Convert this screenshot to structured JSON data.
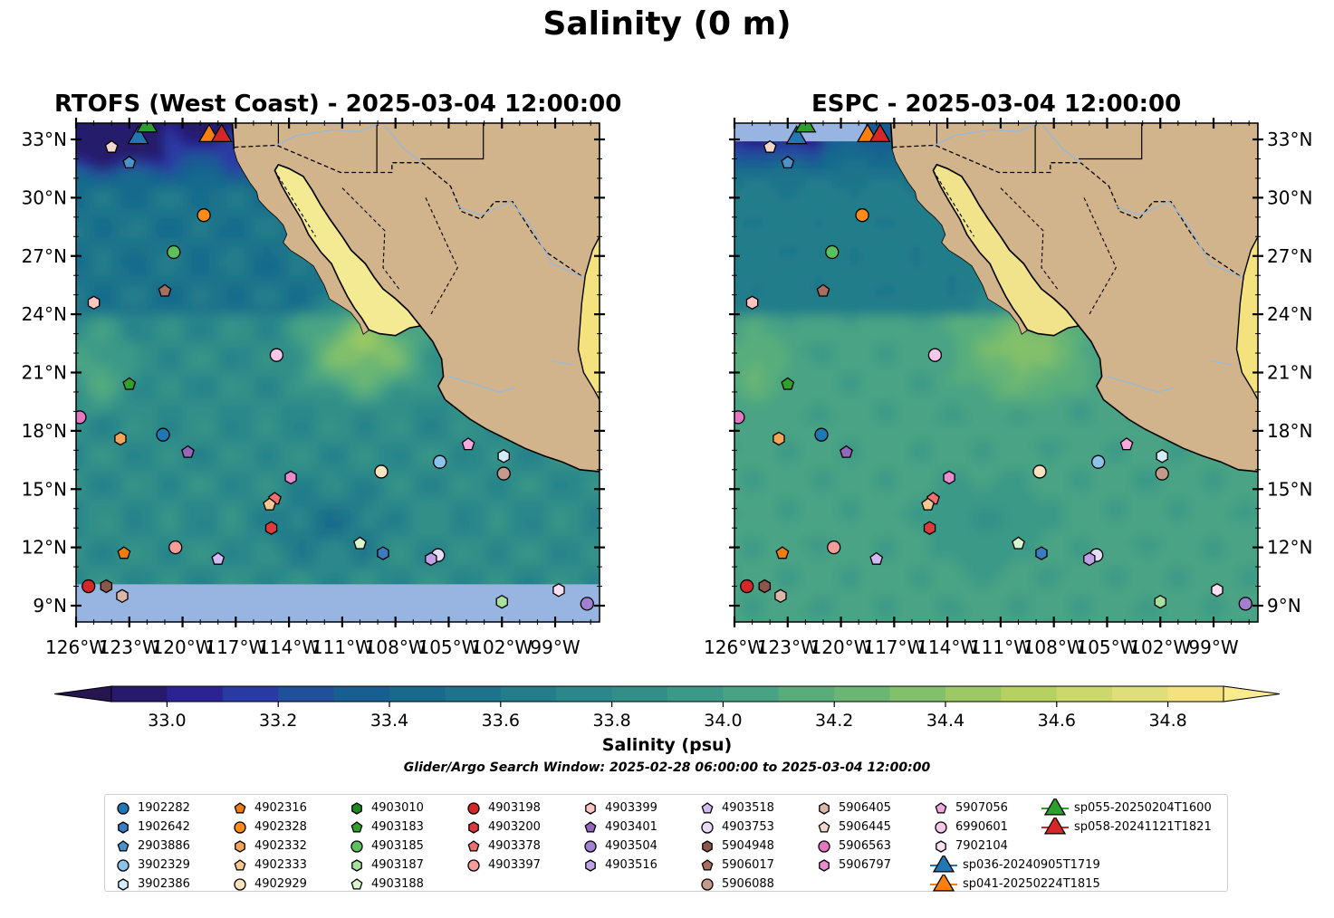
{
  "title": "Salinity (0 m)",
  "panels": [
    {
      "title": "RTOFS (West Coast) - 2025-03-04 12:00:00",
      "kind": "rtofs"
    },
    {
      "title": "ESPC - 2025-03-04 12:00:00",
      "kind": "espc"
    }
  ],
  "map_extent": {
    "lon": [
      -126,
      -96.5
    ],
    "lat": [
      8,
      34
    ]
  },
  "lat_ticks": [
    "33°N",
    "30°N",
    "27°N",
    "24°N",
    "21°N",
    "18°N",
    "15°N",
    "12°N",
    "9°N"
  ],
  "lon_ticks": [
    "126°W",
    "123°W",
    "120°W",
    "117°W",
    "114°W",
    "111°W",
    "108°W",
    "105°W",
    "102°W",
    "99°W"
  ],
  "colorbar": {
    "label": "Salinity (psu)",
    "range": [
      32.9,
      34.9
    ],
    "ticks": [
      "33.0",
      "33.2",
      "33.4",
      "33.6",
      "33.8",
      "34.0",
      "34.2",
      "34.4",
      "34.6",
      "34.8"
    ],
    "colors": [
      "#271a6c",
      "#2b2394",
      "#2a3aa5",
      "#20509b",
      "#175f93",
      "#176a8c",
      "#1c738b",
      "#237d8a",
      "#2a888a",
      "#318f88",
      "#3a9987",
      "#48a384",
      "#58ad7b",
      "#6bb674",
      "#82c06b",
      "#9cc963",
      "#b6d15f",
      "#cdd86a",
      "#dfdf7a",
      "#f3e27e"
    ],
    "under_color": "#26154f",
    "over_color": "#fbeb8f"
  },
  "colors": {
    "land": "#d2b48c",
    "masked": "#98b4e0",
    "river": "#9bb8d3"
  },
  "search_window": "Glider/Argo Search Window: 2025-02-28 06:00:00 to 2025-03-04 12:00:00",
  "legend": [
    {
      "label": "1902282",
      "marker": "circle",
      "color": "#1f77b4"
    },
    {
      "label": "1902642",
      "marker": "hexagon",
      "color": "#3a7cbf"
    },
    {
      "label": "2903886",
      "marker": "pentagon",
      "color": "#4c92c8"
    },
    {
      "label": "3902329",
      "marker": "circle",
      "color": "#8cc3ea"
    },
    {
      "label": "3902386",
      "marker": "hexagon",
      "color": "#d3ecfb"
    },
    {
      "label": "4902316",
      "marker": "pentagon",
      "color": "#ee7d0f"
    },
    {
      "label": "4902328",
      "marker": "circle",
      "color": "#ff8c1a"
    },
    {
      "label": "4902332",
      "marker": "hexagon",
      "color": "#f5a55a"
    },
    {
      "label": "4902333",
      "marker": "pentagon",
      "color": "#f9c892"
    },
    {
      "label": "4902929",
      "marker": "circle",
      "color": "#fde3c0"
    },
    {
      "label": "4903010",
      "marker": "hexagon",
      "color": "#1d8a1d"
    },
    {
      "label": "4903183",
      "marker": "pentagon",
      "color": "#33a02c"
    },
    {
      "label": "4903185",
      "marker": "circle",
      "color": "#5cc15c"
    },
    {
      "label": "4903187",
      "marker": "hexagon",
      "color": "#a8e0a0"
    },
    {
      "label": "4903188",
      "marker": "pentagon",
      "color": "#d8f5d0"
    },
    {
      "label": "4903198",
      "marker": "circle",
      "color": "#d62728"
    },
    {
      "label": "4903200",
      "marker": "hexagon",
      "color": "#dd3b3b"
    },
    {
      "label": "4903378",
      "marker": "pentagon",
      "color": "#ef6e6e"
    },
    {
      "label": "4903397",
      "marker": "circle",
      "color": "#f59d98"
    },
    {
      "label": "4903399",
      "marker": "hexagon",
      "color": "#fbc6c2"
    },
    {
      "label": "4903401",
      "marker": "pentagon",
      "color": "#9467bd"
    },
    {
      "label": "4903504",
      "marker": "circle",
      "color": "#a27fd0"
    },
    {
      "label": "4903516",
      "marker": "hexagon",
      "color": "#bfa3e6"
    },
    {
      "label": "4903518",
      "marker": "pentagon",
      "color": "#d2baf5"
    },
    {
      "label": "4903753",
      "marker": "circle",
      "color": "#e8dcfb"
    },
    {
      "label": "5904948",
      "marker": "hexagon",
      "color": "#8c564b"
    },
    {
      "label": "5906017",
      "marker": "pentagon",
      "color": "#a86f60"
    },
    {
      "label": "5906088",
      "marker": "circle",
      "color": "#c49a8b"
    },
    {
      "label": "5906405",
      "marker": "hexagon",
      "color": "#dcb7a8"
    },
    {
      "label": "5906445",
      "marker": "pentagon",
      "color": "#f2d8cc"
    },
    {
      "label": "5906563",
      "marker": "circle",
      "color": "#e377c2"
    },
    {
      "label": "5906797",
      "marker": "hexagon",
      "color": "#e98bcf"
    },
    {
      "label": "5907056",
      "marker": "pentagon",
      "color": "#f3a9de"
    },
    {
      "label": "6990601",
      "marker": "circle",
      "color": "#f8c7ea"
    },
    {
      "label": "7902104",
      "marker": "hexagon",
      "color": "#fbe0f2"
    },
    {
      "label": "sp036-20240905T1719",
      "marker": "triangle",
      "color": "#1f77b4"
    },
    {
      "label": "sp041-20250224T1815",
      "marker": "triangle",
      "color": "#ff7f0e"
    },
    {
      "label": "sp055-20250204T1600",
      "marker": "triangle",
      "color": "#2ca02c"
    },
    {
      "label": "sp058-20241121T1821",
      "marker": "triangle",
      "color": "#d62728"
    }
  ],
  "floats": [
    {
      "id": "5906445",
      "lon": -124.0,
      "lat": 32.6
    },
    {
      "id": "2903886",
      "lon": -123.0,
      "lat": 31.8
    },
    {
      "id": "4902328",
      "lon": -118.8,
      "lat": 29.1
    },
    {
      "id": "4903185",
      "lon": -120.5,
      "lat": 27.2
    },
    {
      "id": "5906017",
      "lon": -121.0,
      "lat": 25.2
    },
    {
      "id": "4903399",
      "lon": -125.0,
      "lat": 24.6
    },
    {
      "id": "6990601",
      "lon": -114.7,
      "lat": 21.9
    },
    {
      "id": "4903183",
      "lon": -123.0,
      "lat": 20.4
    },
    {
      "id": "5906563",
      "lon": -125.8,
      "lat": 18.7
    },
    {
      "id": "1902282",
      "lon": -121.1,
      "lat": 17.8
    },
    {
      "id": "4902332",
      "lon": -123.5,
      "lat": 17.6
    },
    {
      "id": "4903401",
      "lon": -119.7,
      "lat": 16.9
    },
    {
      "id": "5907056",
      "lon": -103.9,
      "lat": 17.3
    },
    {
      "id": "3902386",
      "lon": -101.9,
      "lat": 16.7
    },
    {
      "id": "3902329",
      "lon": -105.5,
      "lat": 16.4
    },
    {
      "id": "4902929",
      "lon": -108.8,
      "lat": 15.9
    },
    {
      "id": "5906088",
      "lon": -101.9,
      "lat": 15.8
    },
    {
      "id": "5906797",
      "lon": -113.9,
      "lat": 15.6
    },
    {
      "id": "4903378",
      "lon": -114.8,
      "lat": 14.5
    },
    {
      "id": "4902333",
      "lon": -115.1,
      "lat": 14.2
    },
    {
      "id": "4903200",
      "lon": -115.0,
      "lat": 13.0
    },
    {
      "id": "4903188",
      "lon": -110.0,
      "lat": 12.2
    },
    {
      "id": "4903397",
      "lon": -120.4,
      "lat": 12.0
    },
    {
      "id": "4902316",
      "lon": -123.3,
      "lat": 11.7
    },
    {
      "id": "1902642",
      "lon": -108.7,
      "lat": 11.7
    },
    {
      "id": "4903753",
      "lon": -105.6,
      "lat": 11.6
    },
    {
      "id": "4903516",
      "lon": -106.0,
      "lat": 11.4
    },
    {
      "id": "4903518",
      "lon": -118.0,
      "lat": 11.4
    },
    {
      "id": "4903198",
      "lon": -125.3,
      "lat": 10.0
    },
    {
      "id": "5904948",
      "lon": -124.3,
      "lat": 10.0
    },
    {
      "id": "5906405",
      "lon": -123.4,
      "lat": 9.5
    },
    {
      "id": "4903187",
      "lon": -102.0,
      "lat": 9.2
    },
    {
      "id": "7902104",
      "lon": -98.8,
      "lat": 9.8
    },
    {
      "id": "4903504",
      "lon": -97.2,
      "lat": 9.1
    }
  ],
  "gliders": [
    {
      "id": "sp036-20240905T1719",
      "lon": -122.5,
      "lat": 33.2
    },
    {
      "id": "sp055-20250204T1600",
      "lon": -122.0,
      "lat": 33.8
    },
    {
      "id": "sp041-20250224T1815",
      "lon": -118.5,
      "lat": 33.3
    },
    {
      "id": "sp058-20241121T1821",
      "lon": -117.8,
      "lat": 33.3
    }
  ]
}
